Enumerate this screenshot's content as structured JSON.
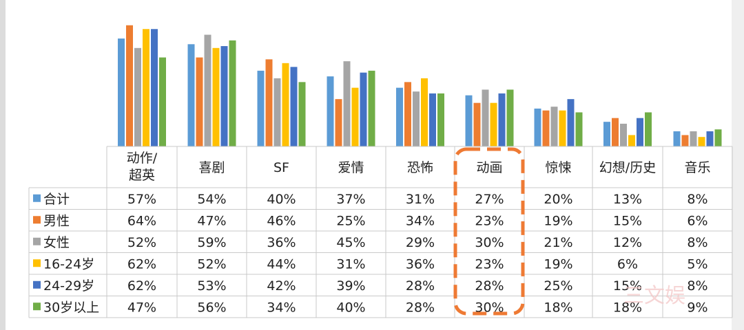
{
  "watermark_text": "三文娱",
  "colors": {
    "grid": "#c9c9c9",
    "highlight_border": "#ee7a34",
    "watermark": "#f3c8c8"
  },
  "chart_data": {
    "type": "bar",
    "unit": "%",
    "categories": [
      "动作/超英",
      "喜剧",
      "SF",
      "爱情",
      "恐怖",
      "动画",
      "惊悚",
      "幻想/历史",
      "音乐"
    ],
    "category_label_lines": [
      [
        "动作/",
        "超英"
      ],
      [
        "喜剧"
      ],
      [
        "SF"
      ],
      [
        "爱情"
      ],
      [
        "恐怖"
      ],
      [
        "动画"
      ],
      [
        "惊悚"
      ],
      [
        "幻想/历史"
      ],
      [
        "音乐"
      ]
    ],
    "highlighted_category": "动画",
    "legend_position": "left-column-of-table",
    "grid": false,
    "ylim": [
      0,
      65
    ],
    "series": [
      {
        "name": "合计",
        "color": "#5b9bd5",
        "values": [
          57,
          54,
          40,
          37,
          31,
          27,
          20,
          13,
          8
        ]
      },
      {
        "name": "男性",
        "color": "#ed7d31",
        "values": [
          64,
          47,
          46,
          25,
          34,
          23,
          19,
          15,
          6
        ]
      },
      {
        "name": "女性",
        "color": "#a5a5a5",
        "values": [
          52,
          59,
          36,
          45,
          29,
          30,
          21,
          12,
          8
        ]
      },
      {
        "name": "16-24岁",
        "color": "#ffc000",
        "values": [
          62,
          52,
          44,
          31,
          36,
          23,
          19,
          6,
          5
        ]
      },
      {
        "name": "24-29岁",
        "color": "#4472c4",
        "values": [
          62,
          53,
          42,
          39,
          28,
          28,
          25,
          15,
          8
        ]
      },
      {
        "name": "30岁以上",
        "color": "#70ad47",
        "values": [
          47,
          56,
          34,
          40,
          28,
          30,
          18,
          18,
          9
        ]
      }
    ]
  }
}
